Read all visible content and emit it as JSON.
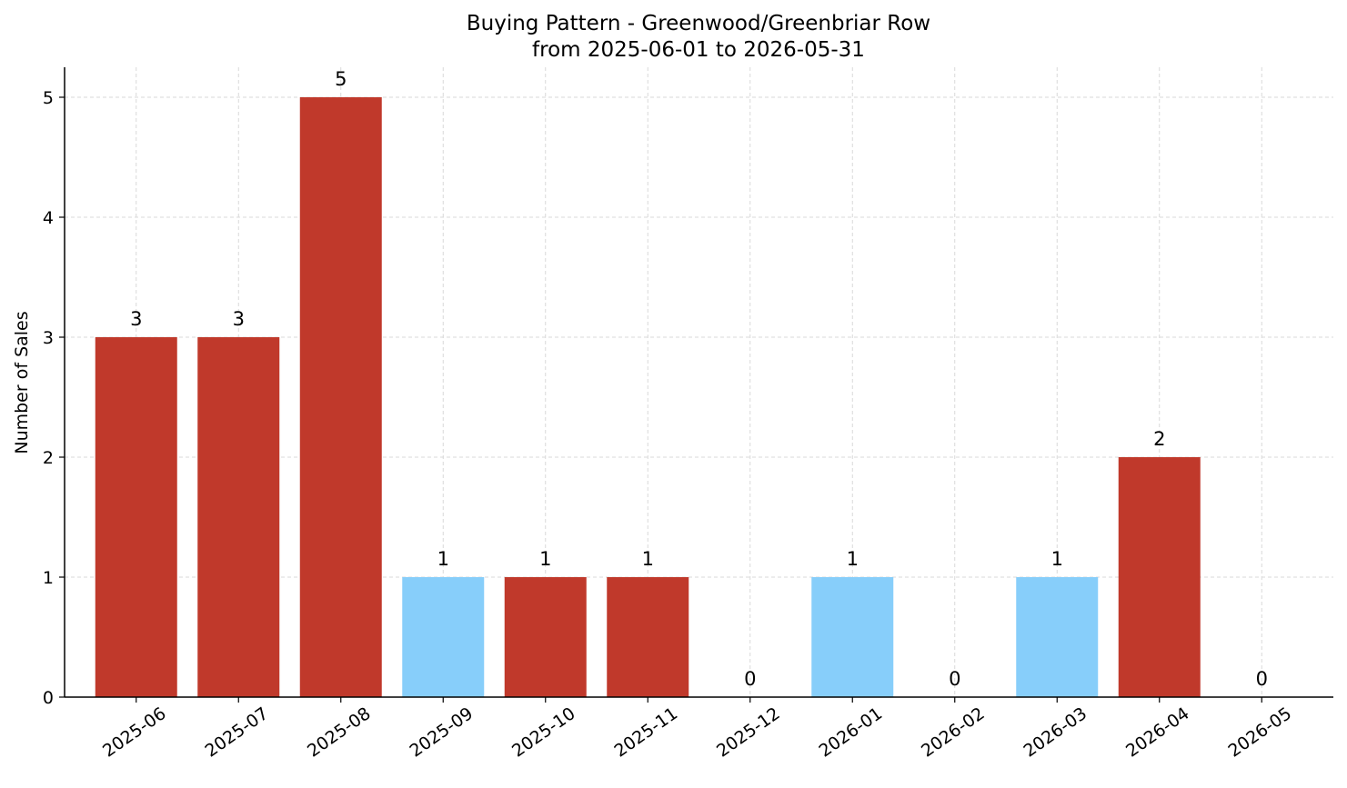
{
  "chart_data": {
    "type": "bar",
    "title": "Buying Pattern - Greenwood/Greenbriar Row",
    "subtitle": "from 2025-06-01 to 2026-05-31",
    "xlabel": "",
    "ylabel": "Number of Sales",
    "categories": [
      "2025-06",
      "2025-07",
      "2025-08",
      "2025-09",
      "2025-10",
      "2025-11",
      "2025-12",
      "2026-01",
      "2026-02",
      "2026-03",
      "2026-04",
      "2026-05"
    ],
    "values": [
      3,
      3,
      5,
      1,
      1,
      1,
      0,
      1,
      0,
      1,
      2,
      0
    ],
    "bar_colors": [
      "#c0392b",
      "#c0392b",
      "#c0392b",
      "#87cefa",
      "#c0392b",
      "#c0392b",
      "#c0392b",
      "#87cefa",
      "#c0392b",
      "#87cefa",
      "#c0392b",
      "#c0392b"
    ],
    "data_labels": [
      "3",
      "3",
      "5",
      "1",
      "1",
      "1",
      "0",
      "1",
      "0",
      "1",
      "2",
      "0"
    ],
    "yticks": [
      0,
      1,
      2,
      3,
      4,
      5
    ],
    "ylim": [
      0,
      5.25
    ],
    "grid": true,
    "legend": "none"
  }
}
